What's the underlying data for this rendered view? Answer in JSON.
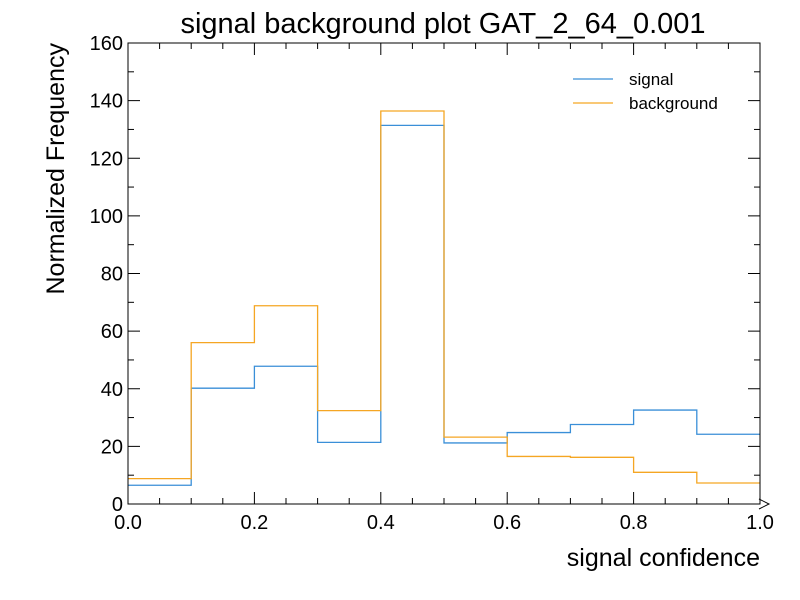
{
  "chart_data": {
    "type": "histogram-step",
    "title": "signal background plot GAT_2_64_0.001",
    "xlabel": "signal confidence",
    "ylabel": "Normalized Frequency",
    "xlim": [
      0.0,
      1.0
    ],
    "ylim": [
      0,
      160
    ],
    "x_ticks": [
      0.0,
      0.2,
      0.4,
      0.6,
      0.8,
      1.0
    ],
    "x_tick_labels": [
      "0.0",
      "0.2",
      "0.4",
      "0.6",
      "0.8",
      "1.0"
    ],
    "y_ticks": [
      0,
      20,
      40,
      60,
      80,
      100,
      120,
      140,
      160
    ],
    "y_tick_labels": [
      "0",
      "20",
      "40",
      "60",
      "80",
      "100",
      "120",
      "140",
      "160"
    ],
    "bin_edges": [
      0.0,
      0.1,
      0.2,
      0.3,
      0.4,
      0.5,
      0.6,
      0.7,
      0.8,
      0.9,
      1.0
    ],
    "series": [
      {
        "name": "signal",
        "color": "#3a8fd8",
        "values": [
          6.5,
          40.2,
          47.8,
          21.4,
          131.4,
          21.2,
          24.8,
          27.6,
          32.6,
          24.2
        ]
      },
      {
        "name": "background",
        "color": "#f5a623",
        "values": [
          8.8,
          56.0,
          68.8,
          32.4,
          136.4,
          23.2,
          16.5,
          16.2,
          11.0,
          7.3
        ]
      }
    ],
    "legend_position": "top-right",
    "grid": false
  }
}
